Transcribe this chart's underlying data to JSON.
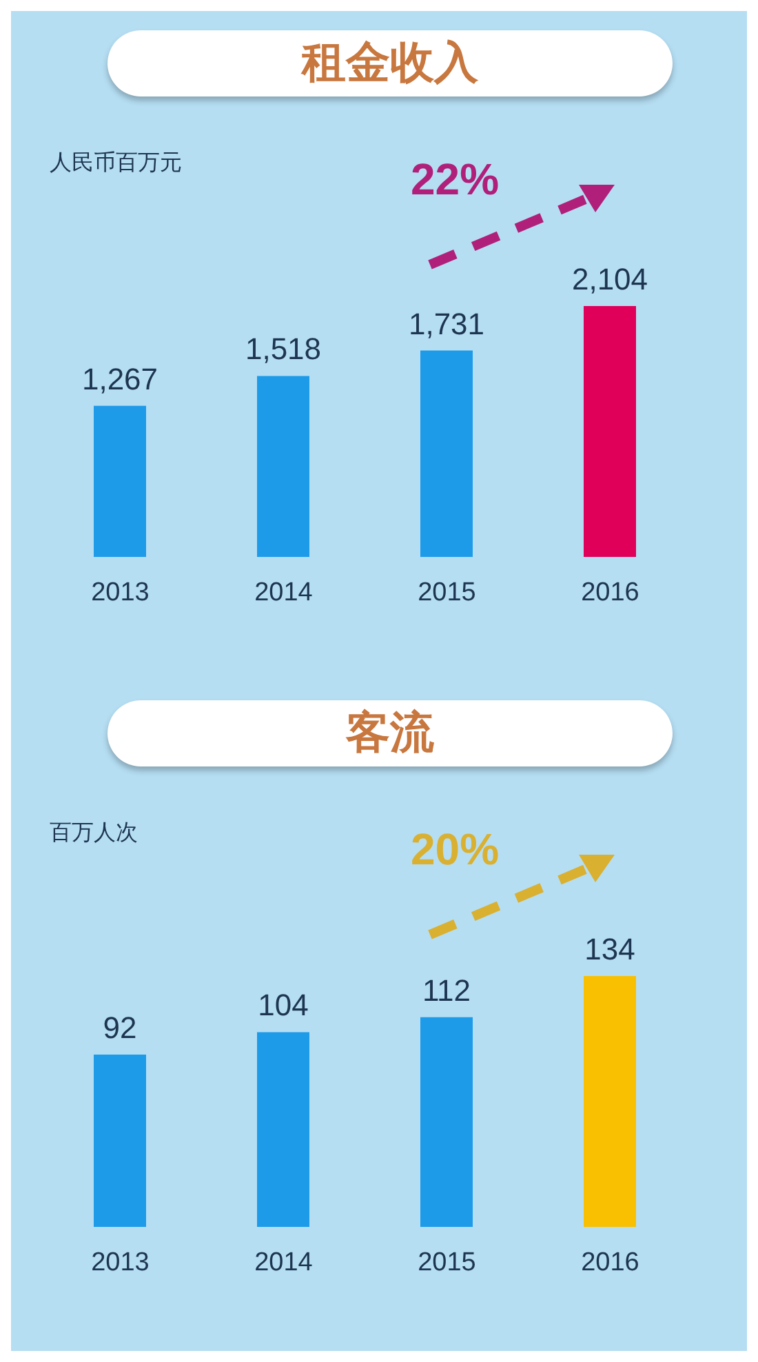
{
  "chart_data": [
    {
      "type": "bar",
      "title": "租金收入",
      "ylabel": "人民币百万元",
      "categories": [
        "2013",
        "2014",
        "2015",
        "2016"
      ],
      "values": [
        1267,
        1518,
        1731,
        2104
      ],
      "colors": [
        "#1e9be8",
        "#1e9be8",
        "#1e9be8",
        "#e0005a"
      ],
      "value_labels": [
        "1,267",
        "1,518",
        "1,731",
        "2,104"
      ],
      "annotations": [
        "22%"
      ]
    },
    {
      "type": "bar",
      "title": "客流",
      "ylabel": "百万人次",
      "categories": [
        "2013",
        "2014",
        "2015",
        "2016"
      ],
      "values": [
        92,
        104,
        112,
        134
      ],
      "colors": [
        "#1e9be8",
        "#1e9be8",
        "#1e9be8",
        "#f8c000"
      ],
      "data_labels": true,
      "annotations": [
        "20%"
      ]
    }
  ]
}
